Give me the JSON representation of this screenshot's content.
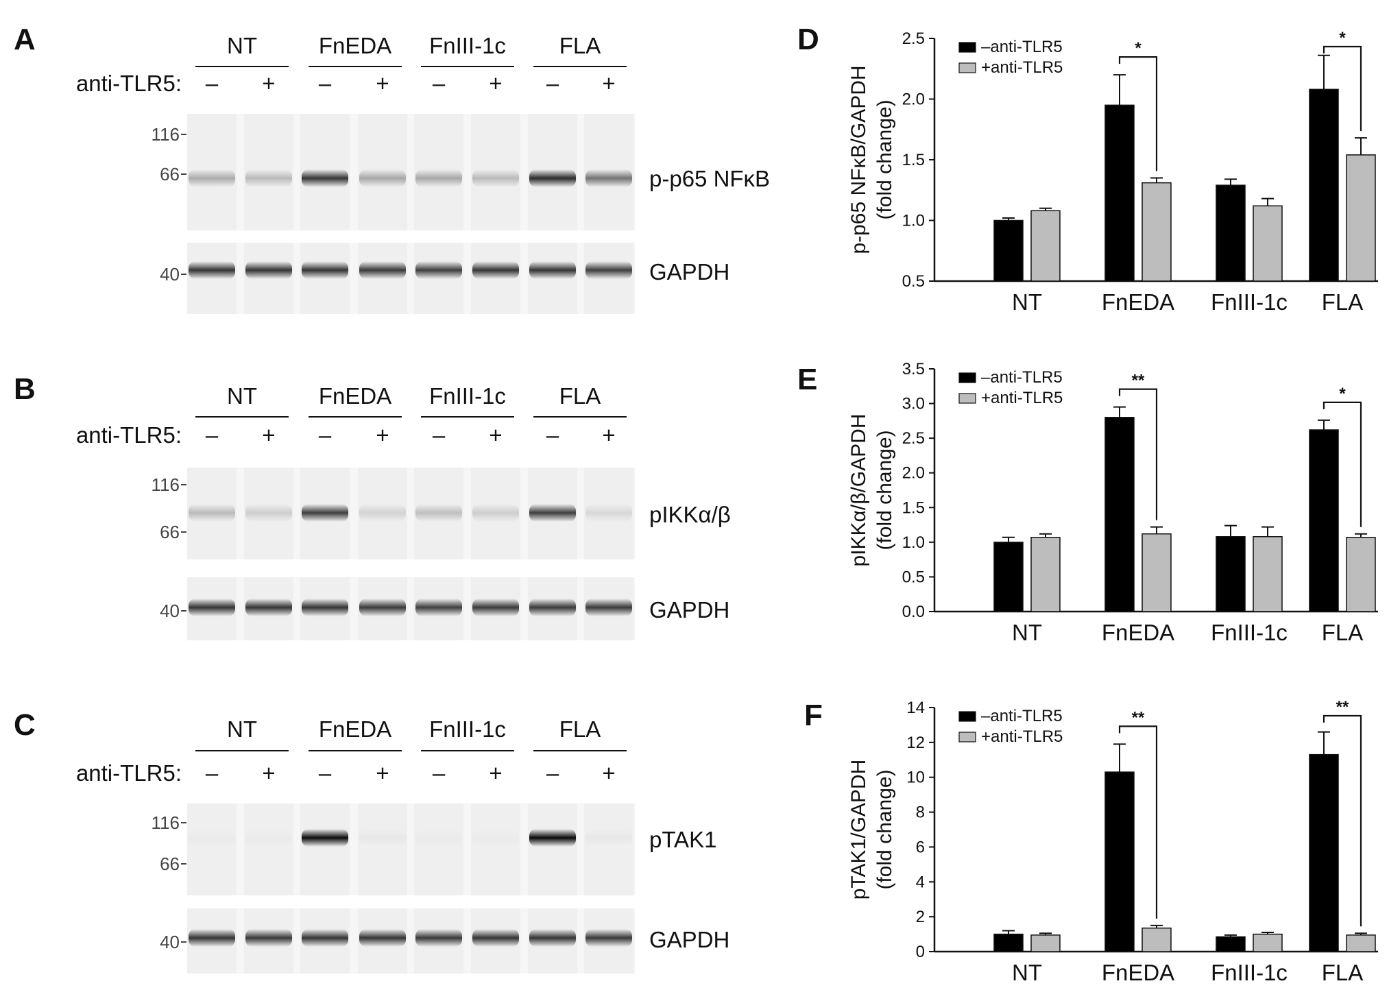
{
  "blots": [
    {
      "panel": "A",
      "groups": [
        "NT",
        "FnEDA",
        "FnIII-1c",
        "FLA"
      ],
      "row_label": "anti-TLR5:",
      "lane_signs": [
        "–",
        "+",
        "–",
        "+",
        "–",
        "+",
        "–",
        "+"
      ],
      "top": {
        "protein": "p-p65 NFκB",
        "markers": [
          "116",
          "66"
        ],
        "band_intensity": [
          0.28,
          0.22,
          0.78,
          0.3,
          0.3,
          0.22,
          0.82,
          0.52
        ]
      },
      "bottom": {
        "protein": "GAPDH",
        "markers": [
          "40"
        ],
        "band_intensity": [
          0.78,
          0.78,
          0.78,
          0.76,
          0.74,
          0.78,
          0.78,
          0.74
        ]
      }
    },
    {
      "panel": "B",
      "groups": [
        "NT",
        "FnEDA",
        "FnIII-1c",
        "FLA"
      ],
      "row_label": "anti-TLR5:",
      "lane_signs": [
        "–",
        "+",
        "–",
        "+",
        "–",
        "+",
        "–",
        "+"
      ],
      "top": {
        "protein": "pIKKα/β",
        "markers": [
          "116",
          "66"
        ],
        "band_intensity": [
          0.22,
          0.14,
          0.74,
          0.12,
          0.2,
          0.14,
          0.74,
          0.1
        ]
      },
      "bottom": {
        "protein": "GAPDH",
        "markers": [
          "40"
        ],
        "band_intensity": [
          0.78,
          0.78,
          0.78,
          0.76,
          0.74,
          0.76,
          0.76,
          0.76
        ]
      }
    },
    {
      "panel": "C",
      "groups": [
        "NT",
        "FnEDA",
        "FnIII-1c",
        "FLA"
      ],
      "row_label": "anti-TLR5:",
      "lane_signs": [
        "–",
        "+",
        "–",
        "+",
        "–",
        "+",
        "–",
        "+"
      ],
      "top": {
        "protein": "pTAK1",
        "markers": [
          "116",
          "66"
        ],
        "band_intensity": [
          0.02,
          0.02,
          0.95,
          0.03,
          0.02,
          0.02,
          0.96,
          0.03
        ]
      },
      "bottom": {
        "protein": "GAPDH",
        "markers": [
          "40"
        ],
        "band_intensity": [
          0.78,
          0.76,
          0.78,
          0.78,
          0.76,
          0.78,
          0.78,
          0.76
        ]
      }
    }
  ],
  "chart_data": [
    {
      "panel": "D",
      "type": "bar",
      "categories": [
        "NT",
        "FnEDA",
        "FnIII-1c",
        "FLA"
      ],
      "ylabel": [
        "p-p65 NFκB/GAPDH",
        "(fold change)"
      ],
      "ylim": [
        0.5,
        2.5
      ],
      "yticks": [
        "0.5",
        "1.0",
        "1.5",
        "2.0",
        "2.5"
      ],
      "series": [
        {
          "name": "–anti-TLR5",
          "color": "#000000",
          "values": [
            1.0,
            1.95,
            1.29,
            2.08
          ],
          "errors": [
            0.02,
            0.25,
            0.05,
            0.28
          ]
        },
        {
          "name": "+anti-TLR5",
          "color": "#bdbdbd",
          "values": [
            1.08,
            1.31,
            1.12,
            1.54
          ],
          "errors": [
            0.02,
            0.04,
            0.06,
            0.14
          ]
        }
      ],
      "significance": [
        {
          "category": "FnEDA",
          "label": "*"
        },
        {
          "category": "FLA",
          "label": "*"
        }
      ],
      "legend": "top-left"
    },
    {
      "panel": "E",
      "type": "bar",
      "categories": [
        "NT",
        "FnEDA",
        "FnIII-1c",
        "FLA"
      ],
      "ylabel": [
        "pIKKα/β/GAPDH",
        "(fold change)"
      ],
      "ylim": [
        0.0,
        3.5
      ],
      "yticks": [
        "0.0",
        "0.5",
        "1.0",
        "1.5",
        "2.0",
        "2.5",
        "3.0",
        "3.5"
      ],
      "series": [
        {
          "name": "–anti-TLR5",
          "color": "#000000",
          "values": [
            1.0,
            2.8,
            1.08,
            2.62
          ],
          "errors": [
            0.07,
            0.15,
            0.16,
            0.14
          ]
        },
        {
          "name": "+anti-TLR5",
          "color": "#bdbdbd",
          "values": [
            1.07,
            1.12,
            1.08,
            1.07
          ],
          "errors": [
            0.05,
            0.1,
            0.14,
            0.05
          ]
        }
      ],
      "significance": [
        {
          "category": "FnEDA",
          "label": "**"
        },
        {
          "category": "FLA",
          "label": "*"
        }
      ],
      "legend": "top-left"
    },
    {
      "panel": "F",
      "type": "bar",
      "categories": [
        "NT",
        "FnEDA",
        "FnIII-1c",
        "FLA"
      ],
      "ylabel": [
        "pTAK1/GAPDH",
        "(fold change)"
      ],
      "ylim": [
        0,
        14
      ],
      "yticks": [
        "0",
        "2",
        "4",
        "6",
        "8",
        "10",
        "12",
        "14"
      ],
      "series": [
        {
          "name": "–anti-TLR5",
          "color": "#000000",
          "values": [
            1.0,
            10.3,
            0.85,
            11.3
          ],
          "errors": [
            0.2,
            1.6,
            0.1,
            1.3
          ]
        },
        {
          "name": "+anti-TLR5",
          "color": "#bdbdbd",
          "values": [
            0.95,
            1.35,
            1.0,
            0.95
          ],
          "errors": [
            0.1,
            0.15,
            0.1,
            0.1
          ]
        }
      ],
      "significance": [
        {
          "category": "FnEDA",
          "label": "**"
        },
        {
          "category": "FLA",
          "label": "**"
        }
      ],
      "legend": "top-left"
    }
  ]
}
